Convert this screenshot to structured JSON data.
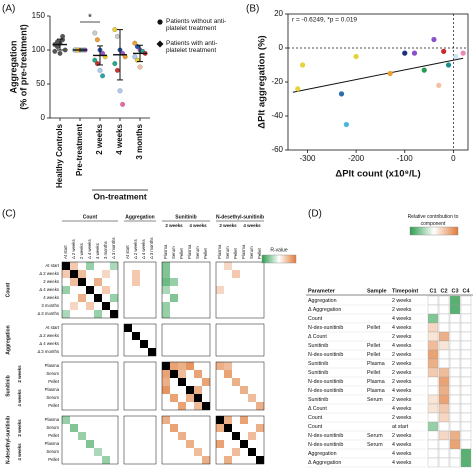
{
  "chart_data": [
    {
      "type": "dot",
      "panel": "(A)",
      "ylabel": "Aggregation",
      "ylabel2": "(% of pre-treatment)",
      "categories": [
        "Healthy Controls",
        "Pre-treatment",
        "2 weeks",
        "4 weeks",
        "3 months"
      ],
      "group_label": "On-treatment",
      "significance": "*",
      "ylim": [
        0,
        150
      ],
      "yticks": [
        0,
        50,
        100,
        150
      ],
      "points": [
        [
          98,
          105,
          110,
          115,
          100,
          108,
          112,
          95,
          120
        ],
        [
          100,
          100,
          100,
          100,
          100,
          100,
          100
        ],
        [
          125,
          115,
          100,
          95,
          90,
          85,
          80,
          70,
          62
        ],
        [
          130,
          120,
          100,
          95,
          90,
          80,
          70,
          40,
          20
        ],
        [
          110,
          105,
          100,
          98,
          95,
          90,
          85,
          75
        ]
      ],
      "point_colors": [
        [
          "#555555",
          "#555555",
          "#555555",
          "#555555",
          "#555555",
          "#555555",
          "#555555",
          "#555555",
          "#555555"
        ],
        [
          "#f0a030",
          "#2255aa",
          "#cc3333",
          "#22aa88",
          "#9955cc",
          "#aaccee",
          "#eecc33"
        ],
        [
          "#cccccc",
          "#f0a030",
          "#2255aa",
          "#9955cc",
          "#eecc33",
          "#22aa88",
          "#cc3333",
          "#aaccee",
          "#22aaaa"
        ],
        [
          "#eecc33",
          "#cccccc",
          "#2255aa",
          "#9955cc",
          "#f0a030",
          "#22aa88",
          "#cc3333",
          "#aaccee",
          "#ee66aa"
        ],
        [
          "#f0a030",
          "#2255aa",
          "#9955cc",
          "#22aa88",
          "#cc3333",
          "#aaccee",
          "#eecc33",
          "#f5c0a0"
        ]
      ],
      "means": [
        108,
        100,
        92,
        93,
        95
      ],
      "errors": [
        8,
        0,
        14,
        37,
        12
      ],
      "legend": [
        {
          "name": "Patients without anti-platelet treatment",
          "marker": "circle"
        },
        {
          "name": "Patients with anti-platelet treatment",
          "marker": "diamond"
        }
      ]
    },
    {
      "type": "scatter",
      "panel": "(B)",
      "annotation": "r = -0.6249, *p = 0.019",
      "xlabel": "ΔPlt count (x10⁹/L)",
      "ylabel": "ΔPlt aggregation (%)",
      "x": [
        -320,
        -310,
        -230,
        -220,
        -200,
        -130,
        -100,
        -80,
        -60,
        -40,
        -30,
        -20,
        -10,
        5,
        20
      ],
      "y": [
        -24,
        -10,
        -27,
        -45,
        -5,
        -15,
        -3,
        -3,
        -13,
        5,
        -22,
        -2,
        -10,
        -5,
        -3
      ],
      "colors": [
        "#e6d33a",
        "#e6d33a",
        "#2e6db0",
        "#49b6e0",
        "#e6d33a",
        "#f0a030",
        "#1c2f7a",
        "#8a50c8",
        "#2a9a50",
        "#8a50c8",
        "#f5c0a0",
        "#cc2a2a",
        "#1a8f8f",
        "#cfe3f2",
        "#ee88bb"
      ],
      "fit": {
        "x": [
          -330,
          20
        ],
        "y": [
          -26,
          -6
        ]
      },
      "xlim": [
        -340,
        30
      ],
      "ylim": [
        -60,
        20
      ],
      "xticks": [
        -300,
        -200,
        -100,
        0
      ],
      "yticks": [
        -60,
        -40,
        -20,
        0,
        20
      ],
      "zero_lines": true
    },
    {
      "type": "heatmap",
      "panel": "(C)",
      "legend_title": "R-value",
      "colors": {
        "negative": "#2e9e4f",
        "zero": "#ffffff",
        "positive": "#e07b39",
        "diagonal": "#000000"
      },
      "groups": [
        {
          "name": "Count",
          "items": [
            "At start",
            "Δ 2 weeks",
            "2 weeks",
            "Δ 4 weeks",
            "4 weeks",
            "3 months",
            "Δ 3 months"
          ]
        },
        {
          "name": "Aggregation",
          "items": [
            "At start",
            "Δ 2 weeks",
            "Δ 4 weeks",
            "Δ 3 months"
          ]
        },
        {
          "name": "Sunitinib",
          "subgroups": [
            "2 weeks",
            "4 weeks"
          ],
          "items": [
            "Plasma",
            "Serum",
            "Pellet",
            "Plasma",
            "Serum",
            "Pellet"
          ]
        },
        {
          "name": "N-desethyl-sunitinib",
          "subgroups": [
            "2 weeks",
            "4 weeks"
          ],
          "items": [
            "Plasma",
            "Serum",
            "Pellet",
            "Plasma",
            "Serum",
            "Pellet"
          ]
        }
      ],
      "cells": [
        [
          0,
          0,
          1
        ],
        [
          1,
          1,
          1
        ],
        [
          2,
          2,
          1
        ],
        [
          3,
          3,
          1
        ],
        [
          4,
          4,
          1
        ],
        [
          5,
          5,
          1
        ],
        [
          6,
          6,
          1
        ],
        [
          7,
          7,
          1
        ],
        [
          8,
          8,
          1
        ],
        [
          9,
          9,
          1
        ],
        [
          10,
          10,
          1
        ],
        [
          11,
          11,
          1
        ],
        [
          12,
          12,
          1
        ],
        [
          13,
          13,
          1
        ],
        [
          14,
          14,
          1
        ],
        [
          15,
          15,
          1
        ],
        [
          16,
          16,
          1
        ],
        [
          17,
          17,
          1
        ],
        [
          18,
          18,
          1
        ],
        [
          19,
          19,
          1
        ],
        [
          20,
          20,
          1
        ],
        [
          21,
          21,
          1
        ],
        [
          22,
          22,
          1
        ],
        [
          0,
          1,
          0.4
        ],
        [
          1,
          0,
          0.4
        ],
        [
          0,
          3,
          -0.5
        ],
        [
          3,
          0,
          -0.5
        ],
        [
          1,
          2,
          0.5
        ],
        [
          2,
          1,
          0.5
        ],
        [
          2,
          4,
          0.6
        ],
        [
          4,
          2,
          0.6
        ],
        [
          3,
          5,
          0.4
        ],
        [
          5,
          3,
          0.4
        ],
        [
          4,
          6,
          -0.5
        ],
        [
          6,
          4,
          -0.5
        ],
        [
          1,
          5,
          0.3
        ],
        [
          5,
          1,
          0.3
        ],
        [
          0,
          6,
          -0.4
        ],
        [
          6,
          0,
          -0.4
        ],
        [
          1,
          8,
          0.4
        ],
        [
          2,
          8,
          0.4
        ],
        [
          0,
          11,
          -0.6
        ],
        [
          1,
          11,
          -0.6
        ],
        [
          2,
          11,
          -0.7
        ],
        [
          2,
          12,
          -0.5
        ],
        [
          3,
          11,
          -0.4
        ],
        [
          4,
          12,
          -0.6
        ],
        [
          5,
          11,
          -0.5
        ],
        [
          6,
          11,
          -0.5
        ],
        [
          0,
          18,
          0.3
        ],
        [
          1,
          19,
          0.4
        ],
        [
          3,
          17,
          0.3
        ],
        [
          11,
          12,
          0.7
        ],
        [
          11,
          13,
          0.6
        ],
        [
          11,
          14,
          0.8
        ],
        [
          12,
          11,
          0.7
        ],
        [
          12,
          13,
          0.5
        ],
        [
          12,
          15,
          0.7
        ],
        [
          13,
          11,
          0.6
        ],
        [
          13,
          16,
          0.7
        ],
        [
          14,
          11,
          0.8
        ],
        [
          14,
          15,
          0.6
        ],
        [
          15,
          12,
          0.7
        ],
        [
          15,
          14,
          0.6
        ],
        [
          16,
          13,
          0.7
        ],
        [
          16,
          15,
          0.5
        ],
        [
          11,
          17,
          0.6
        ],
        [
          11,
          18,
          0.5
        ],
        [
          12,
          18,
          0.7
        ],
        [
          13,
          19,
          0.6
        ],
        [
          14,
          20,
          0.6
        ],
        [
          15,
          21,
          0.5
        ],
        [
          16,
          22,
          0.6
        ],
        [
          17,
          11,
          0.6
        ],
        [
          18,
          12,
          0.7
        ],
        [
          19,
          13,
          0.6
        ],
        [
          20,
          14,
          0.6
        ],
        [
          21,
          15,
          0.5
        ],
        [
          22,
          16,
          0.6
        ],
        [
          17,
          18,
          0.6
        ],
        [
          18,
          17,
          0.6
        ],
        [
          17,
          20,
          0.7
        ],
        [
          20,
          17,
          0.7
        ],
        [
          19,
          21,
          0.5
        ],
        [
          21,
          19,
          0.5
        ],
        [
          18,
          22,
          0.6
        ],
        [
          22,
          18,
          0.6
        ],
        [
          17,
          0,
          -0.5
        ],
        [
          18,
          1,
          -0.6
        ],
        [
          19,
          2,
          -0.5
        ],
        [
          20,
          3,
          -0.6
        ],
        [
          21,
          4,
          -0.4
        ],
        [
          22,
          5,
          -0.5
        ]
      ]
    },
    {
      "type": "table_heatmap",
      "panel": "(D)",
      "legend_title": "Relative contribution to component",
      "colors": {
        "negative": "#2e9e4f",
        "zero": "#ffffff",
        "positive": "#e07b39"
      },
      "columns": [
        "Parameter",
        "Sample",
        "Timepoint",
        "C1",
        "C2",
        "C3",
        "C4"
      ],
      "rows": [
        {
          "parameter": "Aggregation",
          "sample": null,
          "timepoint": "2 weeks",
          "values": [
            0,
            0,
            -0.8,
            0
          ]
        },
        {
          "parameter": "Δ Aggregation",
          "sample": null,
          "timepoint": "2 weeks",
          "values": [
            0,
            0,
            -0.8,
            0
          ]
        },
        {
          "parameter": "Count",
          "sample": null,
          "timepoint": "4 weeks",
          "values": [
            -0.6,
            0,
            0,
            0
          ]
        },
        {
          "parameter": "N-des-sunitinib",
          "sample": "Pellet",
          "timepoint": "4 weeks",
          "values": [
            0.3,
            0,
            0,
            0
          ]
        },
        {
          "parameter": "Δ Count",
          "sample": null,
          "timepoint": "2 weeks",
          "values": [
            0.2,
            0.6,
            0,
            0
          ]
        },
        {
          "parameter": "Sunitinib",
          "sample": "Pellet",
          "timepoint": "4 weeks",
          "values": [
            0.5,
            0.2,
            0,
            0
          ]
        },
        {
          "parameter": "N-des-sunitinib",
          "sample": "Pellet",
          "timepoint": "2 weeks",
          "values": [
            0.7,
            0,
            0,
            0
          ]
        },
        {
          "parameter": "Sunitinib",
          "sample": "Plasma",
          "timepoint": "2 weeks",
          "values": [
            0.6,
            0,
            0,
            0
          ]
        },
        {
          "parameter": "Sunitinib",
          "sample": "Pellet",
          "timepoint": "2 weeks",
          "values": [
            0.4,
            0.5,
            0,
            0
          ]
        },
        {
          "parameter": "N-des-sunitinib",
          "sample": "Plasma",
          "timepoint": "2 weeks",
          "values": [
            0,
            0.7,
            0,
            0
          ]
        },
        {
          "parameter": "N-des-sunitinib",
          "sample": "Plasma",
          "timepoint": "4 weeks",
          "values": [
            0,
            0.6,
            0,
            0
          ]
        },
        {
          "parameter": "Sunitinib",
          "sample": "Serum",
          "timepoint": "2 weeks",
          "values": [
            0.2,
            0.7,
            0,
            0
          ]
        },
        {
          "parameter": "Δ Count",
          "sample": null,
          "timepoint": "4 weeks",
          "values": [
            0.2,
            0.4,
            0,
            0
          ]
        },
        {
          "parameter": "Count",
          "sample": null,
          "timepoint": "2 weeks",
          "values": [
            0,
            0.3,
            0,
            0
          ]
        },
        {
          "parameter": "Count",
          "sample": null,
          "timepoint": "at start",
          "values": [
            -0.5,
            0,
            0,
            0
          ]
        },
        {
          "parameter": "N-des-sunitinib",
          "sample": "Serum",
          "timepoint": "2 weeks",
          "values": [
            0,
            0.3,
            0.6,
            0
          ]
        },
        {
          "parameter": "N-des-sunitinib",
          "sample": "Serum",
          "timepoint": "4 weeks",
          "values": [
            0,
            0,
            0.7,
            0
          ]
        },
        {
          "parameter": "Aggregation",
          "sample": null,
          "timepoint": "4 weeks",
          "values": [
            0,
            0,
            0,
            -0.8
          ]
        },
        {
          "parameter": "Δ Aggregation",
          "sample": null,
          "timepoint": "4 weeks",
          "values": [
            0,
            0,
            0,
            -0.8
          ]
        }
      ]
    }
  ]
}
